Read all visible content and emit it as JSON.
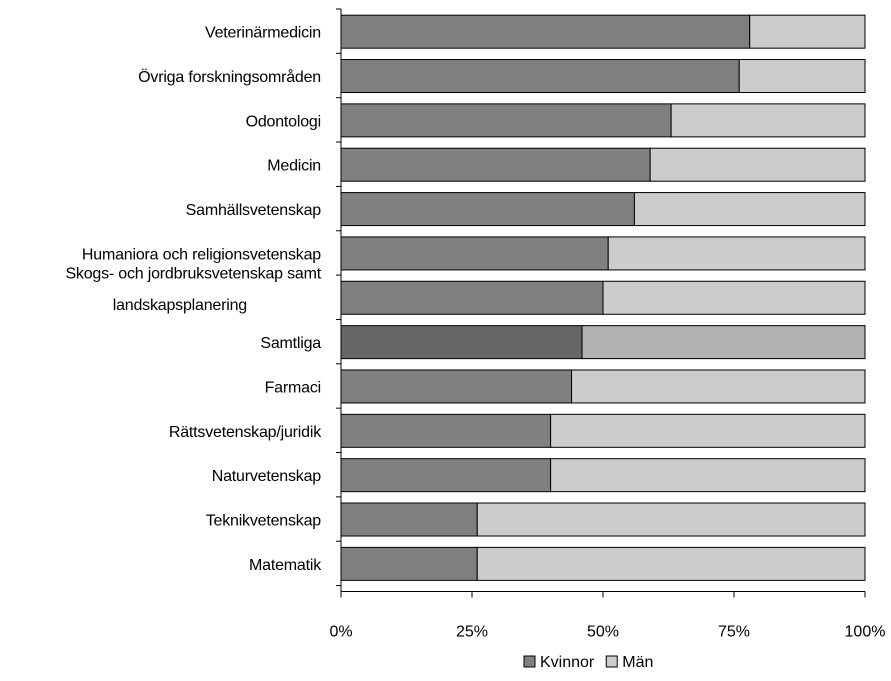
{
  "chart_data": {
    "type": "bar",
    "orientation": "horizontal",
    "stacked": "percent",
    "categories": [
      [
        "Veterinärmedicin"
      ],
      [
        "Övriga forskningsområden"
      ],
      [
        "Odontologi"
      ],
      [
        "Medicin"
      ],
      [
        "Samhällsvetenskap"
      ],
      [
        "Humaniora och religionsvetenskap"
      ],
      [
        "Skogs- och jordbruksvetenskap samt",
        "landskapsplanering"
      ],
      [
        "Samtliga"
      ],
      [
        "Farmaci"
      ],
      [
        "Rättsvetenskap/juridik"
      ],
      [
        "Naturvetenskap"
      ],
      [
        "Teknikvetenskap"
      ],
      [
        "Matematik"
      ]
    ],
    "series": [
      {
        "name": "Kvinnor",
        "values": [
          78,
          76,
          63,
          59,
          56,
          51,
          50,
          46,
          44,
          40,
          40,
          26,
          26
        ],
        "color": "#808080",
        "highlight_color": "#666666"
      },
      {
        "name": "Män",
        "values": [
          22,
          24,
          37,
          41,
          44,
          49,
          50,
          54,
          56,
          60,
          60,
          74,
          74
        ],
        "color": "#cccccc",
        "highlight_color": "#b2b2b2"
      }
    ],
    "highlight_category_index": 7,
    "x_ticks": [
      "0%",
      "25%",
      "50%",
      "75%",
      "100%"
    ],
    "xlim": [
      0,
      100
    ],
    "title": "",
    "xlabel": "",
    "ylabel": "",
    "grid": false,
    "legend_position": "bottom"
  }
}
